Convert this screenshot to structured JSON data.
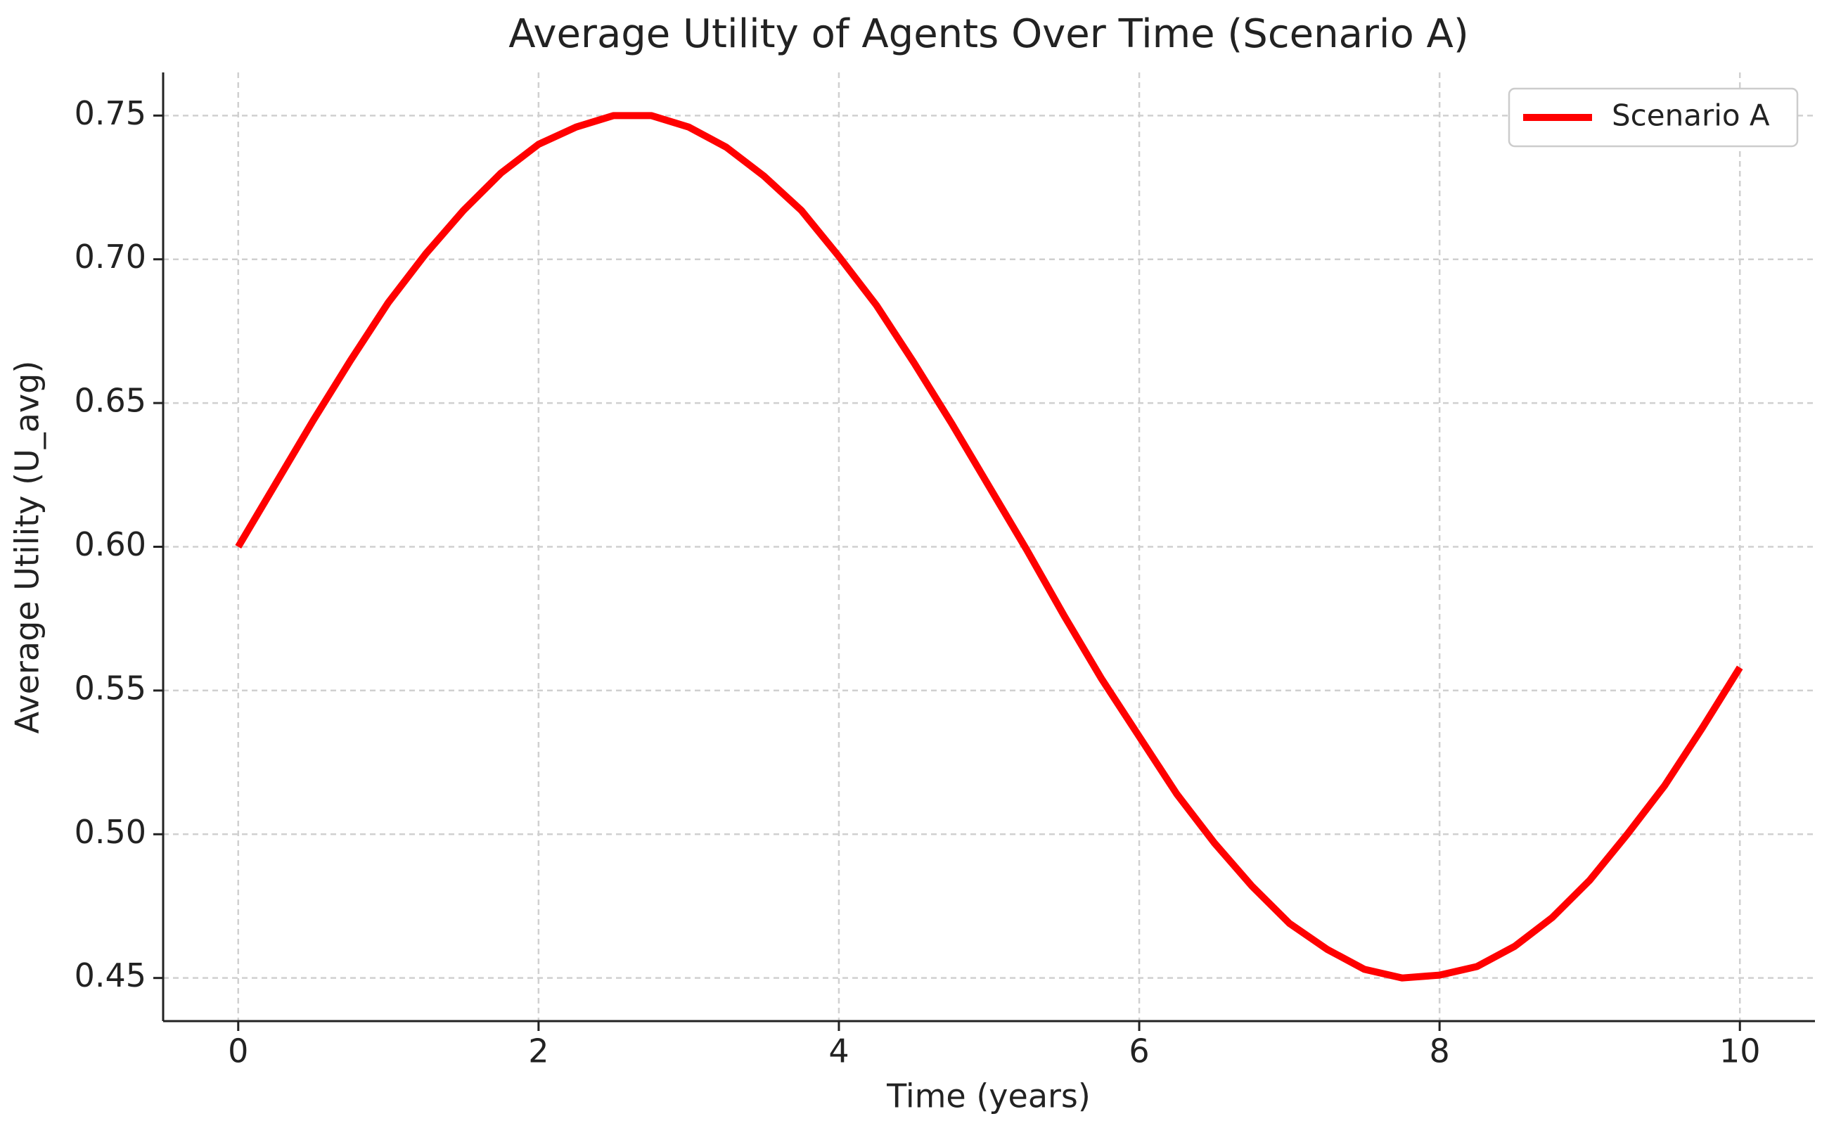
{
  "chart_data": {
    "type": "line",
    "title": "Average Utility of Agents Over Time (Scenario A)",
    "x_label": "Time (years)",
    "y_label": "Average Utility (U_avg)",
    "x": [
      0,
      0.25,
      0.5,
      0.75,
      1,
      1.25,
      1.5,
      1.75,
      2,
      2.25,
      2.5,
      2.75,
      3,
      3.25,
      3.5,
      3.75,
      4,
      4.25,
      4.5,
      4.75,
      5,
      5.25,
      5.5,
      5.75,
      6,
      6.25,
      6.5,
      6.75,
      7,
      7.25,
      7.5,
      7.75,
      8,
      8.25,
      8.5,
      8.75,
      9,
      9.25,
      9.5,
      9.75,
      10
    ],
    "series": [
      {
        "name": "Scenario A",
        "color": "#ff0000",
        "values": [
          0.6,
          0.622,
          0.644,
          0.665,
          0.685,
          0.702,
          0.717,
          0.73,
          0.74,
          0.746,
          0.75,
          0.75,
          0.746,
          0.739,
          0.729,
          0.717,
          0.701,
          0.684,
          0.664,
          0.643,
          0.621,
          0.599,
          0.576,
          0.554,
          0.534,
          0.514,
          0.497,
          0.482,
          0.469,
          0.46,
          0.453,
          0.45,
          0.451,
          0.454,
          0.461,
          0.471,
          0.484,
          0.5,
          0.517,
          0.537,
          0.558
        ]
      }
    ],
    "xlim": [
      -0.5,
      10.5
    ],
    "ylim": [
      0.435,
      0.765
    ],
    "xticks": [
      0,
      2,
      4,
      6,
      8,
      10
    ],
    "yticks": [
      0.45,
      {
        "value": 0.5,
        "label": "0.50"
      },
      0.55,
      {
        "value": 0.6,
        "label": "0.60"
      },
      0.65,
      {
        "value": 0.7,
        "label": "0.70"
      },
      0.75
    ],
    "grid": true,
    "legend": "upper right"
  }
}
